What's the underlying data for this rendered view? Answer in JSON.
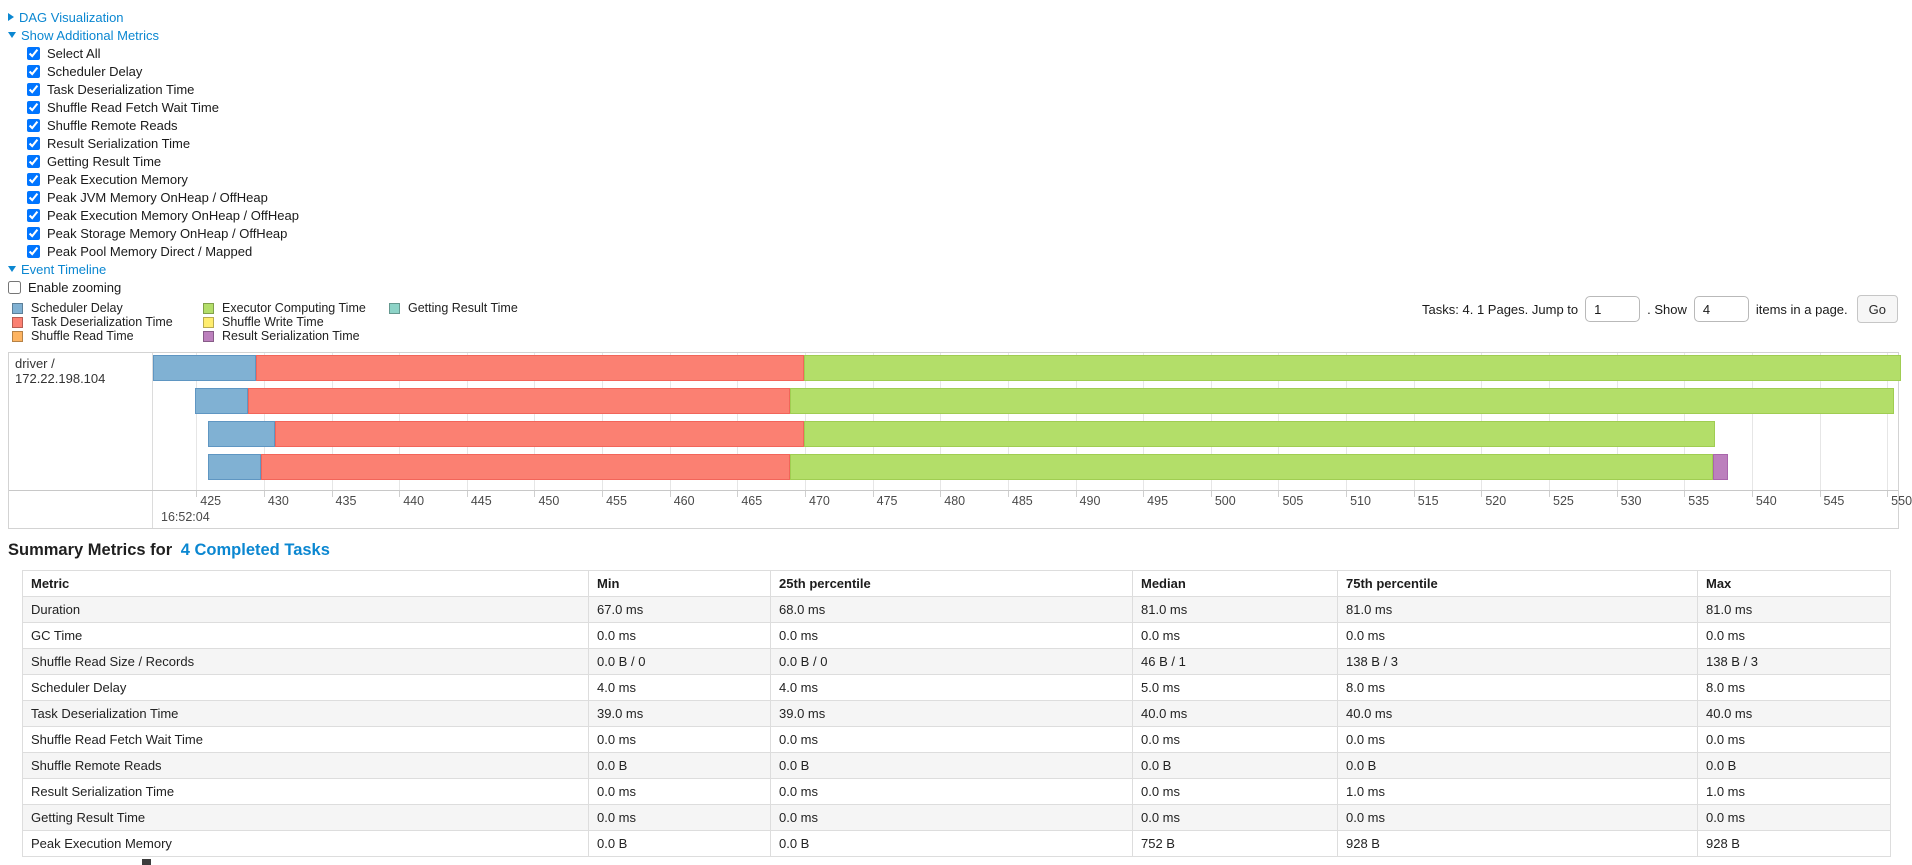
{
  "page": {
    "background": "#ffffff",
    "link_color": "#0b87d1"
  },
  "controls": {
    "dag_label": "DAG Visualization",
    "metrics_label": "Show Additional Metrics",
    "metric_checkboxes": [
      {
        "label": "Select All",
        "checked": true
      },
      {
        "label": "Scheduler Delay",
        "checked": true
      },
      {
        "label": "Task Deserialization Time",
        "checked": true
      },
      {
        "label": "Shuffle Read Fetch Wait Time",
        "checked": true
      },
      {
        "label": "Shuffle Remote Reads",
        "checked": true
      },
      {
        "label": "Result Serialization Time",
        "checked": true
      },
      {
        "label": "Getting Result Time",
        "checked": true
      },
      {
        "label": "Peak Execution Memory",
        "checked": true
      },
      {
        "label": "Peak JVM Memory OnHeap / OffHeap",
        "checked": true
      },
      {
        "label": "Peak Execution Memory OnHeap / OffHeap",
        "checked": true
      },
      {
        "label": "Peak Storage Memory OnHeap / OffHeap",
        "checked": true
      },
      {
        "label": "Peak Pool Memory Direct / Mapped",
        "checked": true
      }
    ],
    "event_timeline_label": "Event Timeline",
    "enable_zooming_label": "Enable zooming",
    "enable_zooming_checked": false
  },
  "legend": {
    "columns": [
      {
        "items": [
          {
            "label": "Scheduler Delay",
            "key": "scheduler_delay"
          },
          {
            "label": "Task Deserialization Time",
            "key": "task_deserialization_time"
          },
          {
            "label": "Shuffle Read Time",
            "key": "shuffle_read_time"
          }
        ]
      },
      {
        "items": [
          {
            "label": "Executor Computing Time",
            "key": "executor_computing_time"
          },
          {
            "label": "Shuffle Write Time",
            "key": "shuffle_write_time"
          },
          {
            "label": "Result Serialization Time",
            "key": "result_serialization_time"
          }
        ]
      },
      {
        "items": [
          {
            "label": "Getting Result Time",
            "key": "getting_result_time"
          }
        ]
      }
    ]
  },
  "pagination": {
    "prefix": "Tasks: 4. 1 Pages. Jump to",
    "jump_value": "1",
    "mid": ". Show",
    "show_value": "4",
    "suffix": "items in a page.",
    "go_label": "Go"
  },
  "chart_data": {
    "type": "timeline",
    "title": "Event Timeline",
    "row_label": "driver / 172.22.198.104",
    "x_axis": {
      "min": 421.8,
      "max": 550.8,
      "ticks": [
        425,
        430,
        435,
        440,
        445,
        450,
        455,
        460,
        465,
        470,
        475,
        480,
        485,
        490,
        495,
        500,
        505,
        510,
        515,
        520,
        525,
        530,
        535,
        540,
        545,
        550
      ],
      "time_label": "16:52:04"
    },
    "colors": {
      "scheduler_delay": "#80B1D3",
      "task_deserialization_time": "#FB8072",
      "shuffle_read_time": "#FDB462",
      "executor_computing_time": "#B3DE69",
      "shuffle_write_time": "#FFED6F",
      "result_serialization_time": "#BC80BD",
      "getting_result_time": "#8DD3C7"
    },
    "tasks": [
      {
        "segments": [
          {
            "key": "scheduler_delay",
            "start": 421.8,
            "end": 429.4
          },
          {
            "key": "task_deserialization_time",
            "start": 429.4,
            "end": 469.9
          },
          {
            "key": "executor_computing_time",
            "start": 469.9,
            "end": 551.0
          }
        ]
      },
      {
        "segments": [
          {
            "key": "scheduler_delay",
            "start": 424.9,
            "end": 428.8
          },
          {
            "key": "task_deserialization_time",
            "start": 428.8,
            "end": 468.9
          },
          {
            "key": "executor_computing_time",
            "start": 468.9,
            "end": 550.5
          }
        ]
      },
      {
        "segments": [
          {
            "key": "scheduler_delay",
            "start": 425.9,
            "end": 430.8
          },
          {
            "key": "task_deserialization_time",
            "start": 430.8,
            "end": 469.9
          },
          {
            "key": "executor_computing_time",
            "start": 469.9,
            "end": 537.3
          }
        ]
      },
      {
        "segments": [
          {
            "key": "scheduler_delay",
            "start": 425.9,
            "end": 429.8
          },
          {
            "key": "task_deserialization_time",
            "start": 429.8,
            "end": 468.9
          },
          {
            "key": "executor_computing_time",
            "start": 468.9,
            "end": 537.1
          },
          {
            "key": "result_serialization_time",
            "start": 537.1,
            "end": 538.2
          }
        ]
      }
    ]
  },
  "summary": {
    "title_prefix": "Summary Metrics for",
    "title_link": "4 Completed Tasks",
    "columns": [
      "Metric",
      "Min",
      "25th percentile",
      "Median",
      "75th percentile",
      "Max"
    ],
    "rows": [
      [
        "Duration",
        "67.0 ms",
        "68.0 ms",
        "81.0 ms",
        "81.0 ms",
        "81.0 ms"
      ],
      [
        "GC Time",
        "0.0 ms",
        "0.0 ms",
        "0.0 ms",
        "0.0 ms",
        "0.0 ms"
      ],
      [
        "Shuffle Read Size / Records",
        "0.0 B / 0",
        "0.0 B / 0",
        "46 B / 1",
        "138 B / 3",
        "138 B / 3"
      ],
      [
        "Scheduler Delay",
        "4.0 ms",
        "4.0 ms",
        "5.0 ms",
        "8.0 ms",
        "8.0 ms"
      ],
      [
        "Task Deserialization Time",
        "39.0 ms",
        "39.0 ms",
        "40.0 ms",
        "40.0 ms",
        "40.0 ms"
      ],
      [
        "Shuffle Read Fetch Wait Time",
        "0.0 ms",
        "0.0 ms",
        "0.0 ms",
        "0.0 ms",
        "0.0 ms"
      ],
      [
        "Shuffle Remote Reads",
        "0.0 B",
        "0.0 B",
        "0.0 B",
        "0.0 B",
        "0.0 B"
      ],
      [
        "Result Serialization Time",
        "0.0 ms",
        "0.0 ms",
        "0.0 ms",
        "1.0 ms",
        "1.0 ms"
      ],
      [
        "Getting Result Time",
        "0.0 ms",
        "0.0 ms",
        "0.0 ms",
        "0.0 ms",
        "0.0 ms"
      ],
      [
        "Peak Execution Memory",
        "0.0 B",
        "0.0 B",
        "752 B",
        "928 B",
        "928 B"
      ]
    ]
  }
}
